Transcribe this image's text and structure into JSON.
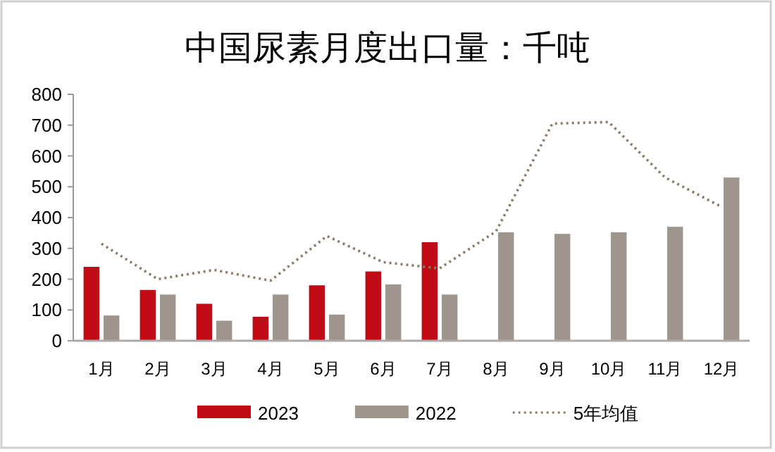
{
  "chart_data": {
    "type": "bar",
    "title": "中国尿素月度出口量：千吨",
    "categories": [
      "1月",
      "2月",
      "3月",
      "4月",
      "5月",
      "6月",
      "7月",
      "8月",
      "9月",
      "10月",
      "11月",
      "12月"
    ],
    "series": [
      {
        "name": "2023",
        "color": "#c00a16",
        "values": [
          240,
          165,
          120,
          78,
          180,
          225,
          320,
          null,
          null,
          null,
          null,
          null
        ]
      },
      {
        "name": "2022",
        "color": "#9e958d",
        "values": [
          82,
          150,
          65,
          150,
          85,
          183,
          150,
          352,
          347,
          352,
          370,
          530
        ]
      },
      {
        "name": "5年均值",
        "type": "line",
        "color": "#8c7d6a",
        "line_style": "dotted",
        "values": [
          315,
          200,
          230,
          195,
          340,
          255,
          235,
          355,
          705,
          710,
          530,
          435
        ]
      }
    ],
    "ylim": [
      0,
      800
    ],
    "yticks": [
      0,
      100,
      200,
      300,
      400,
      500,
      600,
      700,
      800
    ],
    "grid": false,
    "legend": "bottom"
  }
}
